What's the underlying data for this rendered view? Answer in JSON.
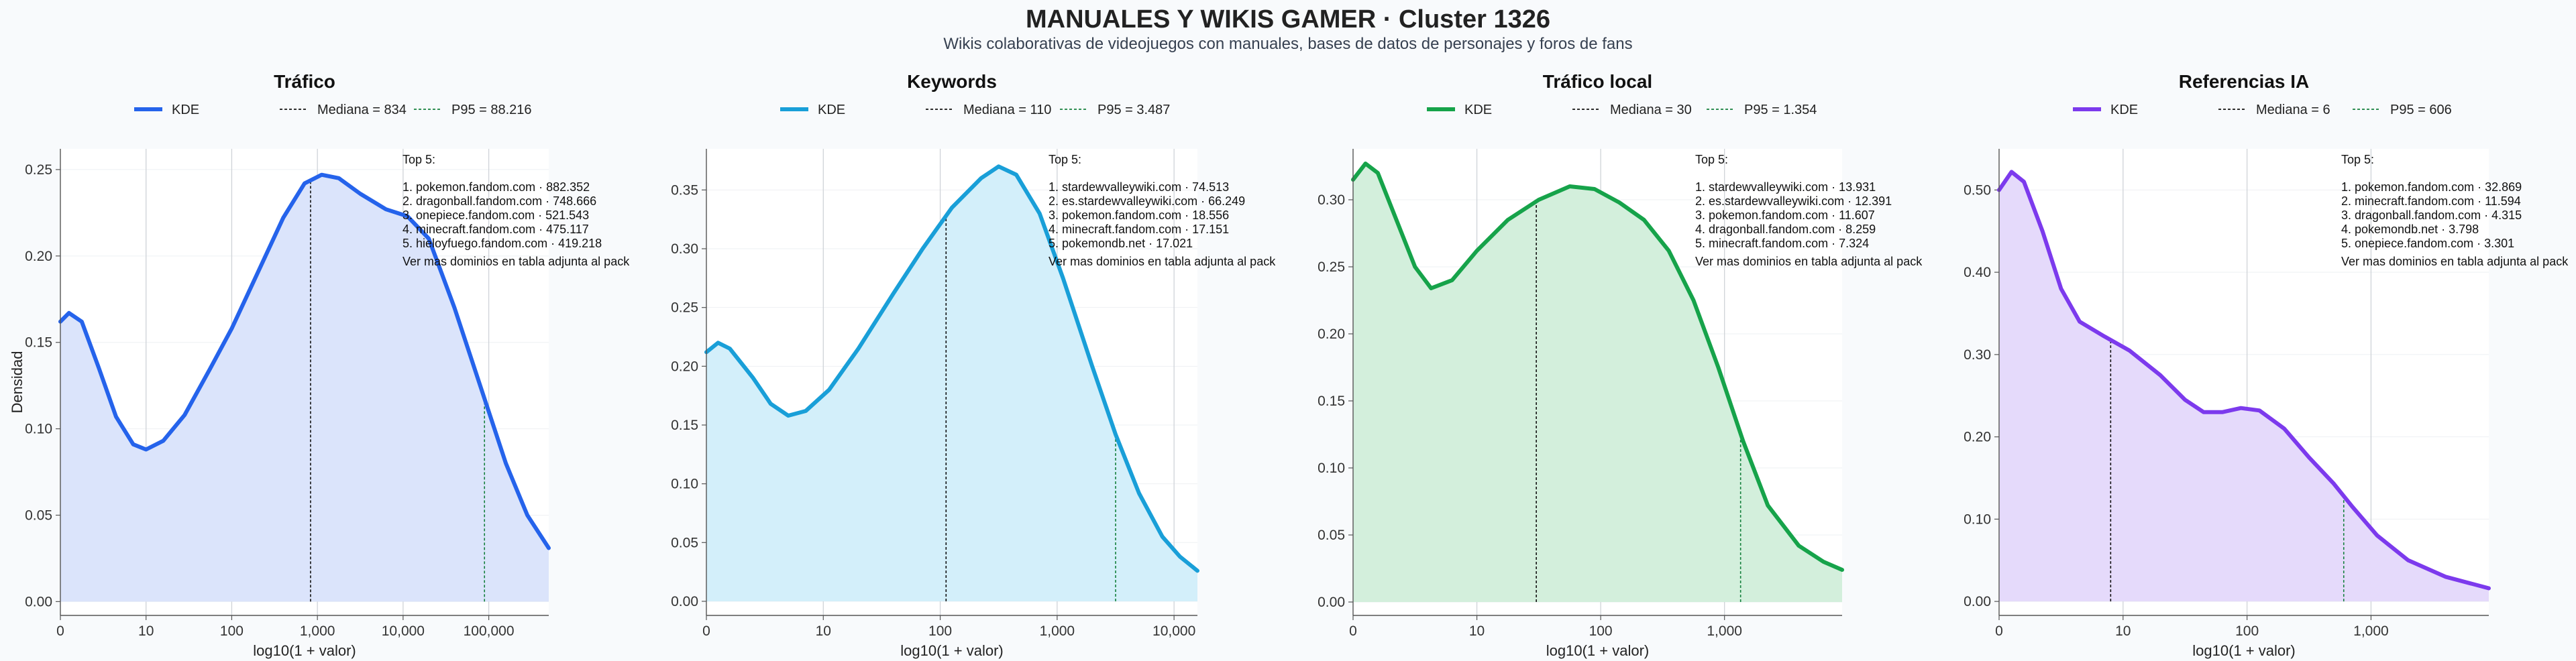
{
  "title": "MANUALES Y WIKIS GAMER · Cluster 1326",
  "subtitle": "Wikis colaborativas de videojuegos con manuales, bases de datos de personajes y foros de fans",
  "ylabel_shared": "Densidad",
  "top_heading": "Top 5:",
  "footnote": "Ver mas dominios en tabla adjunta al pack",
  "chart_data": [
    {
      "type": "area",
      "title": "Tráfico",
      "xlabel": "log10(1 + valor)",
      "color": "#2563eb",
      "fill": "#dbe4fb",
      "x_max": 5.7,
      "xticks": [
        {
          "v": 0,
          "label": "0"
        },
        {
          "v": 1,
          "label": "10"
        },
        {
          "v": 2,
          "label": "100"
        },
        {
          "v": 3,
          "label": "1,000"
        },
        {
          "v": 4,
          "label": "10,000"
        },
        {
          "v": 5,
          "label": "100,000"
        }
      ],
      "yticks": [
        0,
        0.05,
        0.1,
        0.15,
        0.2,
        0.25
      ],
      "ylim": [
        -0.008,
        0.262
      ],
      "legend": {
        "kde": "KDE",
        "median": "Mediana = 834",
        "p95": "P95 = 88.216"
      },
      "median_x": 2.92,
      "p95_x": 4.95,
      "top5": [
        "1. pokemon.fandom.com · 882.352",
        "2. dragonball.fandom.com · 748.666",
        "3. onepiece.fandom.com · 521.543",
        "4. minecraft.fandom.com · 475.117",
        "5. hieloyfuego.fandom.com · 419.218"
      ],
      "kde": [
        [
          0,
          0.162
        ],
        [
          0.1,
          0.167
        ],
        [
          0.25,
          0.162
        ],
        [
          0.45,
          0.135
        ],
        [
          0.65,
          0.107
        ],
        [
          0.85,
          0.091
        ],
        [
          1.0,
          0.088
        ],
        [
          1.2,
          0.093
        ],
        [
          1.45,
          0.108
        ],
        [
          1.75,
          0.135
        ],
        [
          2.0,
          0.158
        ],
        [
          2.3,
          0.19
        ],
        [
          2.6,
          0.222
        ],
        [
          2.85,
          0.242
        ],
        [
          3.05,
          0.247
        ],
        [
          3.25,
          0.245
        ],
        [
          3.5,
          0.236
        ],
        [
          3.8,
          0.227
        ],
        [
          4.05,
          0.223
        ],
        [
          4.3,
          0.21
        ],
        [
          4.6,
          0.17
        ],
        [
          4.9,
          0.125
        ],
        [
          5.2,
          0.08
        ],
        [
          5.45,
          0.05
        ],
        [
          5.7,
          0.031
        ]
      ]
    },
    {
      "type": "area",
      "title": "Keywords",
      "xlabel": "log10(1 + valor)",
      "color": "#199fd8",
      "fill": "#d3effa",
      "x_max": 4.2,
      "xticks": [
        {
          "v": 0,
          "label": "0"
        },
        {
          "v": 1,
          "label": "10"
        },
        {
          "v": 2,
          "label": "100"
        },
        {
          "v": 3,
          "label": "1,000"
        },
        {
          "v": 4,
          "label": "10,000"
        }
      ],
      "yticks": [
        0,
        0.05,
        0.1,
        0.15,
        0.2,
        0.25,
        0.3,
        0.35
      ],
      "ylim": [
        -0.012,
        0.385
      ],
      "legend": {
        "kde": "KDE",
        "median": "Mediana = 110",
        "p95": "P95 = 3.487"
      },
      "median_x": 2.05,
      "p95_x": 3.5,
      "top5": [
        "1. stardewvalleywiki.com · 74.513",
        "2. es.stardewvalleywiki.com · 66.249",
        "3. pokemon.fandom.com · 18.556",
        "4. minecraft.fandom.com · 17.151",
        "5. pokemondb.net · 17.021"
      ],
      "kde": [
        [
          0,
          0.212
        ],
        [
          0.1,
          0.22
        ],
        [
          0.2,
          0.215
        ],
        [
          0.4,
          0.19
        ],
        [
          0.55,
          0.168
        ],
        [
          0.7,
          0.158
        ],
        [
          0.85,
          0.162
        ],
        [
          1.05,
          0.18
        ],
        [
          1.3,
          0.215
        ],
        [
          1.6,
          0.262
        ],
        [
          1.85,
          0.3
        ],
        [
          2.1,
          0.335
        ],
        [
          2.35,
          0.36
        ],
        [
          2.5,
          0.37
        ],
        [
          2.65,
          0.363
        ],
        [
          2.85,
          0.33
        ],
        [
          3.05,
          0.275
        ],
        [
          3.3,
          0.2
        ],
        [
          3.5,
          0.142
        ],
        [
          3.7,
          0.092
        ],
        [
          3.9,
          0.055
        ],
        [
          4.05,
          0.038
        ],
        [
          4.2,
          0.026
        ]
      ]
    },
    {
      "type": "area",
      "title": "Tráfico local",
      "xlabel": "log10(1 + valor)",
      "color": "#16a34a",
      "fill": "#d3efdc",
      "x_max": 3.95,
      "xticks": [
        {
          "v": 0,
          "label": "0"
        },
        {
          "v": 1,
          "label": "10"
        },
        {
          "v": 2,
          "label": "100"
        },
        {
          "v": 3,
          "label": "1,000"
        }
      ],
      "yticks": [
        0,
        0.05,
        0.1,
        0.15,
        0.2,
        0.25,
        0.3
      ],
      "ylim": [
        -0.01,
        0.338
      ],
      "legend": {
        "kde": "KDE",
        "median": "Mediana = 30",
        "p95": "P95 = 1.354"
      },
      "median_x": 1.48,
      "p95_x": 3.13,
      "top5": [
        "1. stardewvalleywiki.com · 13.931",
        "2. es.stardewvalleywiki.com · 12.391",
        "3. pokemon.fandom.com · 11.607",
        "4. dragonball.fandom.com · 8.259",
        "5. minecraft.fandom.com · 7.324"
      ],
      "kde": [
        [
          0,
          0.315
        ],
        [
          0.1,
          0.327
        ],
        [
          0.2,
          0.32
        ],
        [
          0.35,
          0.285
        ],
        [
          0.5,
          0.25
        ],
        [
          0.63,
          0.234
        ],
        [
          0.8,
          0.24
        ],
        [
          1.0,
          0.262
        ],
        [
          1.25,
          0.285
        ],
        [
          1.5,
          0.3
        ],
        [
          1.75,
          0.31
        ],
        [
          1.95,
          0.308
        ],
        [
          2.15,
          0.298
        ],
        [
          2.35,
          0.285
        ],
        [
          2.55,
          0.262
        ],
        [
          2.75,
          0.225
        ],
        [
          2.95,
          0.175
        ],
        [
          3.15,
          0.12
        ],
        [
          3.35,
          0.072
        ],
        [
          3.6,
          0.042
        ],
        [
          3.8,
          0.03
        ],
        [
          3.95,
          0.024
        ]
      ]
    },
    {
      "type": "area",
      "title": "Referencias IA",
      "xlabel": "log10(1 + valor)",
      "color": "#7c3aed",
      "fill": "#e5dafb",
      "x_max": 3.95,
      "xticks": [
        {
          "v": 0,
          "label": "0"
        },
        {
          "v": 1,
          "label": "10"
        },
        {
          "v": 2,
          "label": "100"
        },
        {
          "v": 3,
          "label": "1,000"
        }
      ],
      "yticks": [
        0,
        0.1,
        0.2,
        0.3,
        0.4,
        0.5
      ],
      "ylim": [
        -0.017,
        0.55
      ],
      "legend": {
        "kde": "KDE",
        "median": "Mediana = 6",
        "p95": "P95 = 606"
      },
      "median_x": 0.9,
      "p95_x": 2.78,
      "top5": [
        "1. pokemon.fandom.com · 32.869",
        "2. minecraft.fandom.com · 11.594",
        "3. dragonball.fandom.com · 4.315",
        "4. pokemondb.net · 3.798",
        "5. onepiece.fandom.com · 3.301"
      ],
      "kde": [
        [
          0,
          0.5
        ],
        [
          0.1,
          0.522
        ],
        [
          0.2,
          0.51
        ],
        [
          0.35,
          0.45
        ],
        [
          0.5,
          0.38
        ],
        [
          0.65,
          0.34
        ],
        [
          0.85,
          0.322
        ],
        [
          1.05,
          0.305
        ],
        [
          1.3,
          0.275
        ],
        [
          1.5,
          0.245
        ],
        [
          1.65,
          0.23
        ],
        [
          1.8,
          0.23
        ],
        [
          1.95,
          0.235
        ],
        [
          2.1,
          0.232
        ],
        [
          2.3,
          0.21
        ],
        [
          2.5,
          0.175
        ],
        [
          2.7,
          0.143
        ],
        [
          2.85,
          0.115
        ],
        [
          3.05,
          0.08
        ],
        [
          3.3,
          0.05
        ],
        [
          3.6,
          0.03
        ],
        [
          3.95,
          0.016
        ]
      ]
    }
  ]
}
